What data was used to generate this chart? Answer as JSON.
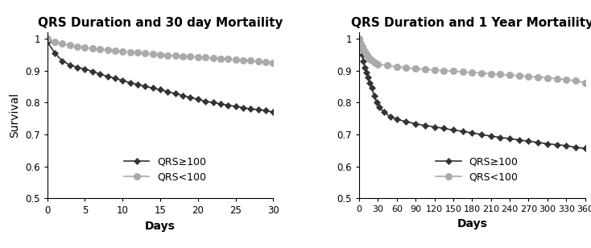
{
  "title1": "QRS Duration and 30 day Mortaility",
  "title2": "QRS Duration and 1 Year Mortaility",
  "xlabel": "Days",
  "ylabel": "Survival",
  "plot1": {
    "xlim": [
      0,
      30
    ],
    "ylim": [
      0.5,
      1.02
    ],
    "xticks": [
      0,
      5,
      10,
      15,
      20,
      25,
      30
    ],
    "yticks": [
      0.5,
      0.6,
      0.7,
      0.8,
      0.9,
      1.0
    ],
    "dark_x": [
      0,
      1,
      2,
      3,
      4,
      5,
      6,
      7,
      8,
      9,
      10,
      11,
      12,
      13,
      14,
      15,
      16,
      17,
      18,
      19,
      20,
      21,
      22,
      23,
      24,
      25,
      26,
      27,
      28,
      29,
      30
    ],
    "dark_y": [
      0.99,
      0.955,
      0.93,
      0.918,
      0.91,
      0.905,
      0.897,
      0.889,
      0.882,
      0.876,
      0.869,
      0.862,
      0.857,
      0.851,
      0.845,
      0.84,
      0.834,
      0.828,
      0.822,
      0.816,
      0.81,
      0.804,
      0.8,
      0.796,
      0.792,
      0.788,
      0.784,
      0.78,
      0.778,
      0.775,
      0.77
    ],
    "light_x": [
      0,
      1,
      2,
      3,
      4,
      5,
      6,
      7,
      8,
      9,
      10,
      11,
      12,
      13,
      14,
      15,
      16,
      17,
      18,
      19,
      20,
      21,
      22,
      23,
      24,
      25,
      26,
      27,
      28,
      29,
      30
    ],
    "light_y": [
      1.0,
      0.99,
      0.984,
      0.979,
      0.975,
      0.972,
      0.969,
      0.967,
      0.965,
      0.962,
      0.96,
      0.958,
      0.956,
      0.954,
      0.952,
      0.95,
      0.948,
      0.947,
      0.945,
      0.944,
      0.942,
      0.941,
      0.939,
      0.938,
      0.936,
      0.935,
      0.933,
      0.931,
      0.929,
      0.927,
      0.924
    ]
  },
  "plot2": {
    "xlim": [
      0,
      360
    ],
    "ylim": [
      0.5,
      1.02
    ],
    "xticks": [
      0,
      30,
      60,
      90,
      120,
      150,
      180,
      210,
      240,
      270,
      300,
      330,
      360
    ],
    "yticks": [
      0.5,
      0.6,
      0.7,
      0.8,
      0.9,
      1.0
    ],
    "dark_x": [
      0,
      3,
      5,
      7,
      9,
      11,
      14,
      17,
      20,
      24,
      28,
      32,
      40,
      50,
      60,
      75,
      90,
      105,
      120,
      135,
      150,
      165,
      180,
      195,
      210,
      225,
      240,
      255,
      270,
      285,
      300,
      315,
      330,
      345,
      360
    ],
    "dark_y": [
      1.0,
      0.97,
      0.95,
      0.93,
      0.91,
      0.895,
      0.88,
      0.862,
      0.845,
      0.822,
      0.8,
      0.785,
      0.77,
      0.755,
      0.748,
      0.74,
      0.734,
      0.728,
      0.724,
      0.719,
      0.714,
      0.71,
      0.705,
      0.7,
      0.695,
      0.691,
      0.687,
      0.683,
      0.679,
      0.675,
      0.671,
      0.668,
      0.665,
      0.66,
      0.656
    ],
    "light_x": [
      0,
      3,
      5,
      7,
      9,
      11,
      14,
      17,
      20,
      25,
      30,
      45,
      60,
      75,
      90,
      105,
      120,
      135,
      150,
      165,
      180,
      195,
      210,
      225,
      240,
      255,
      270,
      285,
      300,
      315,
      330,
      345,
      360
    ],
    "light_y": [
      1.0,
      0.985,
      0.975,
      0.966,
      0.96,
      0.952,
      0.944,
      0.938,
      0.931,
      0.924,
      0.92,
      0.916,
      0.912,
      0.909,
      0.906,
      0.904,
      0.902,
      0.9,
      0.898,
      0.896,
      0.894,
      0.892,
      0.89,
      0.888,
      0.886,
      0.884,
      0.882,
      0.88,
      0.877,
      0.875,
      0.872,
      0.868,
      0.862
    ]
  },
  "dark_color": "#333333",
  "light_color": "#aaaaaa",
  "legend_label_dark": "QRS≥100",
  "legend_label_light": "QRS<100",
  "title_fontsize": 11,
  "label_fontsize": 10,
  "tick_fontsize": 8.5,
  "legend_fontsize": 9,
  "marker_size_dark": 4,
  "marker_size_light": 5,
  "linewidth": 1.2
}
